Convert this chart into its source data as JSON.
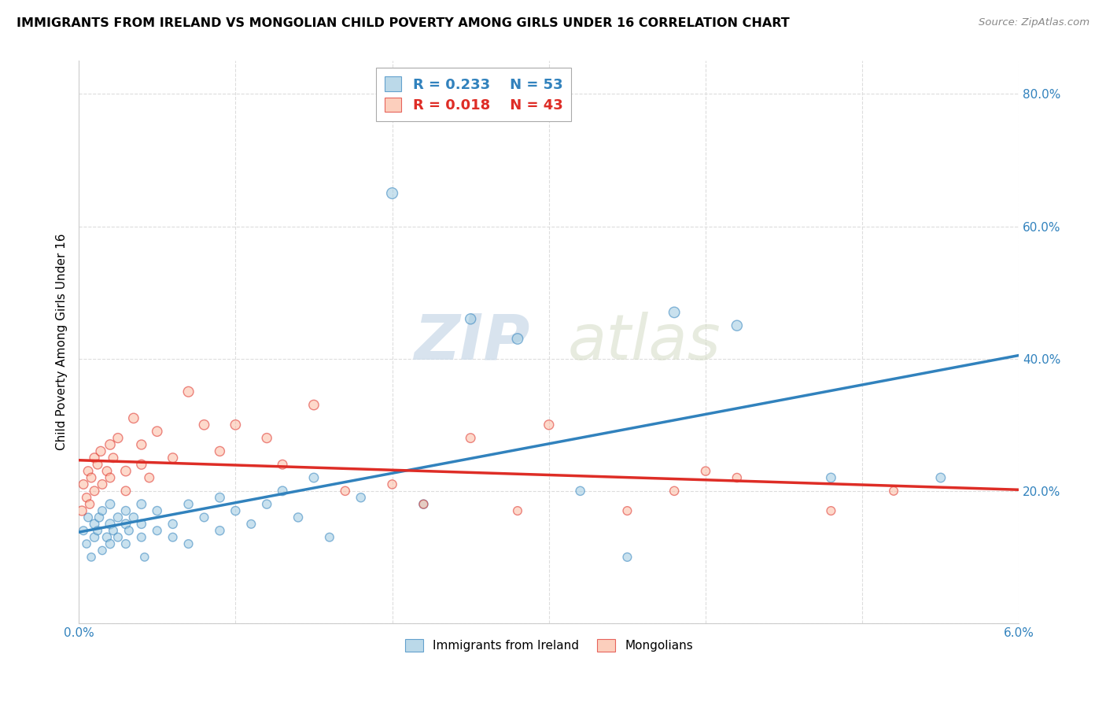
{
  "title": "IMMIGRANTS FROM IRELAND VS MONGOLIAN CHILD POVERTY AMONG GIRLS UNDER 16 CORRELATION CHART",
  "source": "Source: ZipAtlas.com",
  "ylabel": "Child Poverty Among Girls Under 16",
  "xlim": [
    0.0,
    0.06
  ],
  "ylim": [
    0.0,
    0.85
  ],
  "legend_r1": "R = 0.233",
  "legend_n1": "N = 53",
  "legend_r2": "R = 0.018",
  "legend_n2": "N = 43",
  "color_blue": "#9ecae1",
  "color_pink": "#fcbba1",
  "color_blue_line": "#3182bd",
  "color_pink_line": "#de2d26",
  "watermark_zip": "ZIP",
  "watermark_atlas": "atlas",
  "ireland_x": [
    0.0003,
    0.0005,
    0.0006,
    0.0008,
    0.001,
    0.001,
    0.0012,
    0.0013,
    0.0015,
    0.0015,
    0.0018,
    0.002,
    0.002,
    0.002,
    0.0022,
    0.0025,
    0.0025,
    0.003,
    0.003,
    0.003,
    0.0032,
    0.0035,
    0.004,
    0.004,
    0.004,
    0.0042,
    0.005,
    0.005,
    0.006,
    0.006,
    0.007,
    0.007,
    0.008,
    0.009,
    0.009,
    0.01,
    0.011,
    0.012,
    0.013,
    0.014,
    0.015,
    0.016,
    0.018,
    0.02,
    0.022,
    0.025,
    0.028,
    0.032,
    0.035,
    0.038,
    0.042,
    0.048,
    0.055
  ],
  "ireland_y": [
    0.14,
    0.12,
    0.16,
    0.1,
    0.13,
    0.15,
    0.14,
    0.16,
    0.11,
    0.17,
    0.13,
    0.15,
    0.18,
    0.12,
    0.14,
    0.16,
    0.13,
    0.15,
    0.17,
    0.12,
    0.14,
    0.16,
    0.18,
    0.13,
    0.15,
    0.1,
    0.14,
    0.17,
    0.13,
    0.15,
    0.12,
    0.18,
    0.16,
    0.14,
    0.19,
    0.17,
    0.15,
    0.18,
    0.2,
    0.16,
    0.22,
    0.13,
    0.19,
    0.65,
    0.18,
    0.46,
    0.43,
    0.2,
    0.1,
    0.47,
    0.45,
    0.22,
    0.22
  ],
  "ireland_sizes": [
    60,
    55,
    60,
    55,
    65,
    70,
    60,
    65,
    55,
    60,
    65,
    75,
    70,
    65,
    60,
    65,
    60,
    70,
    65,
    60,
    60,
    65,
    70,
    60,
    65,
    55,
    60,
    65,
    60,
    65,
    60,
    65,
    60,
    65,
    70,
    65,
    60,
    65,
    70,
    65,
    70,
    60,
    65,
    100,
    65,
    90,
    95,
    65,
    60,
    95,
    90,
    70,
    70
  ],
  "mongolian_x": [
    0.0002,
    0.0003,
    0.0005,
    0.0006,
    0.0007,
    0.0008,
    0.001,
    0.001,
    0.0012,
    0.0014,
    0.0015,
    0.0018,
    0.002,
    0.002,
    0.0022,
    0.0025,
    0.003,
    0.003,
    0.0035,
    0.004,
    0.004,
    0.0045,
    0.005,
    0.006,
    0.007,
    0.008,
    0.009,
    0.01,
    0.012,
    0.013,
    0.015,
    0.017,
    0.02,
    0.022,
    0.025,
    0.03,
    0.035,
    0.04,
    0.048,
    0.052,
    0.042,
    0.038,
    0.028
  ],
  "mongolian_y": [
    0.17,
    0.21,
    0.19,
    0.23,
    0.18,
    0.22,
    0.25,
    0.2,
    0.24,
    0.26,
    0.21,
    0.23,
    0.27,
    0.22,
    0.25,
    0.28,
    0.23,
    0.2,
    0.31,
    0.24,
    0.27,
    0.22,
    0.29,
    0.25,
    0.35,
    0.3,
    0.26,
    0.3,
    0.28,
    0.24,
    0.33,
    0.2,
    0.21,
    0.18,
    0.28,
    0.3,
    0.17,
    0.23,
    0.17,
    0.2,
    0.22,
    0.2,
    0.17
  ],
  "mongolian_sizes": [
    75,
    70,
    65,
    70,
    65,
    70,
    75,
    70,
    70,
    75,
    70,
    70,
    80,
    70,
    70,
    75,
    80,
    70,
    80,
    75,
    75,
    70,
    80,
    75,
    85,
    80,
    75,
    80,
    75,
    70,
    80,
    65,
    65,
    60,
    70,
    75,
    60,
    65,
    60,
    60,
    65,
    65,
    60
  ]
}
